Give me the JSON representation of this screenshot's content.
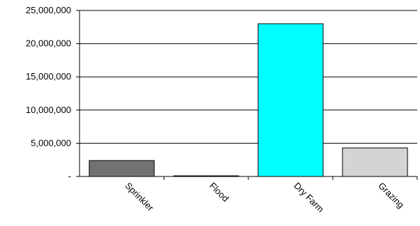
{
  "chart_data": {
    "type": "bar",
    "title": "",
    "xlabel": "",
    "ylabel": "",
    "categories": [
      "Sprinkler",
      "Flood",
      "Dry Farm",
      "Grazing"
    ],
    "values": [
      2400000,
      100000,
      23000000,
      4300000
    ],
    "colors": [
      "#727272",
      "#6e6e6e",
      "#00ffff",
      "#d4d4d4"
    ],
    "ylim": [
      0,
      25000000
    ],
    "yticks": [
      0,
      5000000,
      10000000,
      15000000,
      20000000,
      25000000
    ],
    "ytick_labels": [
      "-",
      "5,000,000",
      "10,000,000",
      "15,000,000",
      "20,000,000",
      "25,000,000"
    ],
    "grid": true,
    "legend": "none"
  }
}
